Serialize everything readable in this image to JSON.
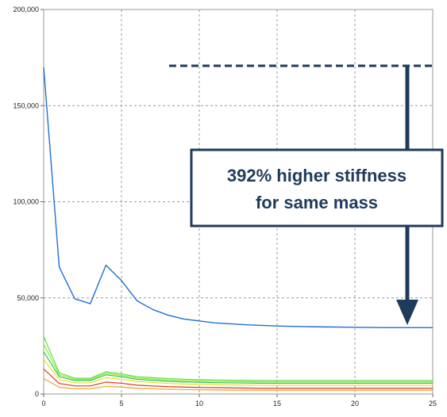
{
  "chart_data": {
    "type": "line",
    "xlim": [
      0,
      25
    ],
    "ylim": [
      0,
      200000
    ],
    "grid": true,
    "x_ticks": [
      0,
      5,
      10,
      15,
      20,
      25
    ],
    "y_ticks": [
      0,
      50000,
      100000,
      150000,
      200000
    ],
    "x_tick_labels": [
      "0",
      "5",
      "10",
      "15",
      "20",
      "25"
    ],
    "y_tick_labels": [
      "0",
      "50,000",
      "100,000",
      "150,000",
      "200,000"
    ],
    "x": [
      0,
      1,
      2,
      3,
      4,
      5,
      6,
      7,
      8,
      9,
      10,
      11,
      12,
      13,
      14,
      15,
      16,
      17,
      18,
      19,
      20,
      21,
      22,
      23,
      24,
      25
    ],
    "series": [
      {
        "color": "#1f6fd8",
        "values": [
          170000,
          66000,
          49500,
          47000,
          67000,
          59000,
          48500,
          44000,
          41000,
          39000,
          38000,
          37000,
          36500,
          36000,
          35700,
          35400,
          35200,
          35000,
          34900,
          34800,
          34700,
          34600,
          34500,
          34500,
          34500,
          34500
        ]
      },
      {
        "color": "#5de03a",
        "values": [
          30000,
          11000,
          8200,
          8200,
          11500,
          10500,
          9000,
          8500,
          8000,
          7700,
          7500,
          7300,
          7200,
          7100,
          7000,
          7000,
          7000,
          7000,
          7000,
          7000,
          7000,
          7000,
          7000,
          7000,
          7000,
          7000
        ]
      },
      {
        "color": "#8be83e",
        "values": [
          26000,
          10000,
          7600,
          7600,
          10800,
          9800,
          8300,
          7800,
          7300,
          7000,
          6800,
          6600,
          6500,
          6400,
          6300,
          6300,
          6300,
          6300,
          6300,
          6300,
          6300,
          6300,
          6300,
          6300,
          6300,
          6300
        ]
      },
      {
        "color": "#2fc44a",
        "values": [
          22000,
          9000,
          7000,
          7000,
          10000,
          9000,
          7600,
          7100,
          6600,
          6300,
          6100,
          5900,
          5800,
          5700,
          5600,
          5600,
          5600,
          5600,
          5600,
          5600,
          5600,
          5600,
          5600,
          5600,
          5600,
          5600
        ]
      },
      {
        "color": "#e6e02a",
        "values": [
          18000,
          7500,
          5800,
          5800,
          8500,
          7700,
          6500,
          6000,
          5500,
          5200,
          5000,
          4800,
          4700,
          4600,
          4500,
          4500,
          4500,
          4500,
          4500,
          4500,
          4500,
          4500,
          4500,
          4500,
          4500,
          4500
        ]
      },
      {
        "color": "#e03a1e",
        "values": [
          13000,
          5500,
          4200,
          4200,
          6200,
          5600,
          4600,
          4200,
          3800,
          3600,
          3400,
          3300,
          3200,
          3100,
          3000,
          3000,
          3000,
          3000,
          3000,
          3000,
          3000,
          3000,
          3000,
          3000,
          3000,
          3000
        ]
      },
      {
        "color": "#f2a030",
        "values": [
          8000,
          3500,
          2700,
          2700,
          4000,
          3600,
          3000,
          2700,
          2500,
          2300,
          2200,
          2100,
          2000,
          2000,
          2000,
          2000,
          2000,
          2000,
          2000,
          2000,
          2000,
          2000,
          2000,
          2000,
          2000,
          2000
        ]
      }
    ]
  },
  "callout": {
    "line1": "392% higher stiffness",
    "line2": "for same mass",
    "border_color": "#1f3b5c",
    "arrow_color": "#1f3b5c",
    "text_color": "#1f3b5c"
  }
}
